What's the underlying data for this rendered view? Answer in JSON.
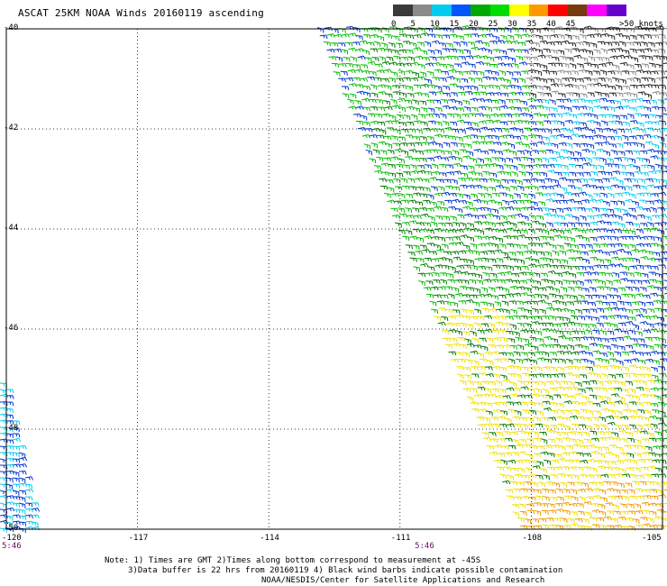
{
  "title": "ASCAT 25KM NOAA Winds 20160119 ascending",
  "legend": {
    "units": ">50 knots",
    "bins": [
      {
        "label": "0",
        "color": "#3a3a3a"
      },
      {
        "label": "5",
        "color": "#8a8a8a"
      },
      {
        "label": "10",
        "color": "#00ccee"
      },
      {
        "label": "15",
        "color": "#0055ff"
      },
      {
        "label": "20",
        "color": "#00aa00"
      },
      {
        "label": "25",
        "color": "#00dd00"
      },
      {
        "label": "30",
        "color": "#ffff00"
      },
      {
        "label": "35",
        "color": "#ff9900"
      },
      {
        "label": "40",
        "color": "#ff0000"
      },
      {
        "label": "45",
        "color": "#7a3a10"
      },
      {
        "label": "",
        "color": "#ff00ff"
      },
      {
        "label": "",
        "color": "#6600cc"
      }
    ]
  },
  "map": {
    "lon_range": [
      -120,
      -105
    ],
    "lat_range": [
      -50,
      -40
    ],
    "x_ticks": [
      {
        "value": -120,
        "label": "-120"
      },
      {
        "value": -117,
        "label": "-117"
      },
      {
        "value": -114,
        "label": "-114"
      },
      {
        "value": -111,
        "label": "-111"
      },
      {
        "value": -108,
        "label": "-108"
      },
      {
        "value": -105,
        "label": "-105"
      }
    ],
    "y_ticks": [
      {
        "value": -40,
        "label": "-40"
      },
      {
        "value": -42,
        "label": "-42"
      },
      {
        "value": -44,
        "label": "-44"
      },
      {
        "value": -46,
        "label": "-46"
      },
      {
        "value": -48,
        "label": "-48"
      },
      {
        "value": -50,
        "label": "-50"
      }
    ],
    "time_labels": [
      {
        "lon": -120,
        "text": "5:46"
      },
      {
        "lon": -110.5,
        "text": "5:46"
      }
    ],
    "grid": "dotted"
  },
  "notes": [
    "Note: 1) Times are GMT 2)Times along bottom correspond to measurement at -45S",
    "3)Data buffer is 22 hrs from 20160119 4) Black wind barbs indicate possible contamination",
    "NOAA/NESDIS/Center for Satellite Applications and Research"
  ]
}
